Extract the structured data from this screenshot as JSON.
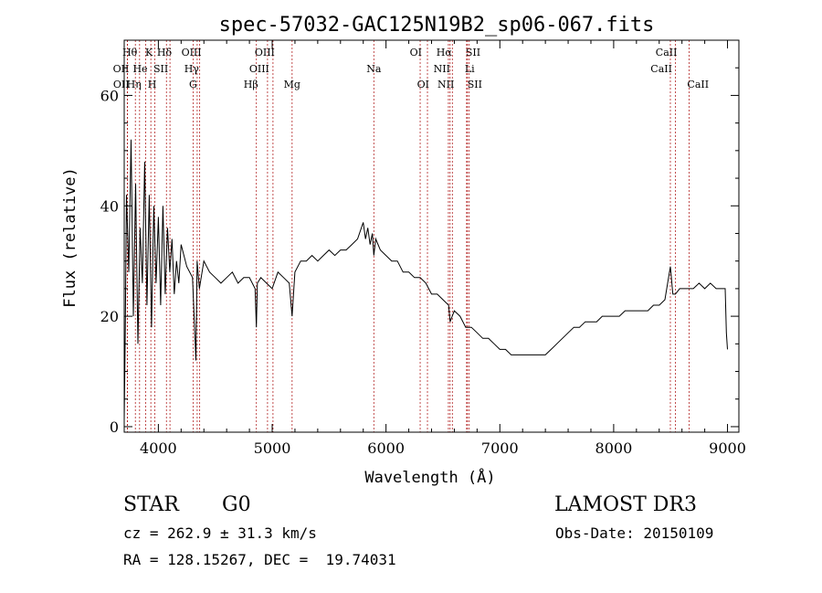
{
  "chart_data": {
    "type": "line",
    "title": "spec-57032-GAC125N19B2_sp06-067.fits",
    "xlabel": "Wavelength (Å)",
    "ylabel": "Flux (relative)",
    "xlim": [
      3700,
      9100
    ],
    "ylim": [
      -1,
      70
    ],
    "x_ticks": [
      4000,
      5000,
      6000,
      7000,
      8000,
      9000
    ],
    "y_ticks": [
      0,
      20,
      40,
      60
    ],
    "series": [
      {
        "name": "flux",
        "x": [
          3700,
          3710,
          3720,
          3740,
          3760,
          3780,
          3800,
          3820,
          3840,
          3860,
          3880,
          3900,
          3920,
          3940,
          3960,
          3980,
          4000,
          4020,
          4040,
          4060,
          4080,
          4100,
          4120,
          4140,
          4160,
          4180,
          4200,
          4250,
          4300,
          4330,
          4340,
          4360,
          4400,
          4450,
          4500,
          4550,
          4600,
          4650,
          4700,
          4750,
          4800,
          4850,
          4861,
          4870,
          4900,
          4950,
          5000,
          5050,
          5100,
          5150,
          5175,
          5200,
          5250,
          5300,
          5350,
          5400,
          5450,
          5500,
          5550,
          5600,
          5650,
          5700,
          5750,
          5800,
          5820,
          5840,
          5860,
          5880,
          5893,
          5910,
          5950,
          6000,
          6050,
          6100,
          6150,
          6200,
          6250,
          6300,
          6350,
          6400,
          6450,
          6500,
          6550,
          6563,
          6600,
          6650,
          6700,
          6750,
          6800,
          6850,
          6900,
          6950,
          7000,
          7050,
          7100,
          7150,
          7200,
          7250,
          7300,
          7350,
          7400,
          7450,
          7500,
          7550,
          7600,
          7650,
          7700,
          7750,
          7800,
          7850,
          7900,
          7950,
          8000,
          8050,
          8100,
          8150,
          8200,
          8250,
          8300,
          8350,
          8400,
          8450,
          8498,
          8520,
          8542,
          8580,
          8620,
          8662,
          8700,
          8750,
          8800,
          8850,
          8900,
          8950,
          8980,
          8990,
          9000
        ],
        "values": [
          1,
          18,
          42,
          28,
          52,
          20,
          44,
          15,
          36,
          26,
          48,
          22,
          42,
          18,
          40,
          26,
          38,
          22,
          40,
          24,
          36,
          28,
          34,
          24,
          30,
          26,
          33,
          29,
          27,
          12,
          30,
          25,
          30,
          28,
          27,
          26,
          27,
          28,
          26,
          27,
          27,
          25,
          18,
          26,
          27,
          26,
          25,
          28,
          27,
          26,
          20,
          28,
          30,
          30,
          31,
          30,
          31,
          32,
          31,
          32,
          32,
          33,
          34,
          37,
          34,
          36,
          33,
          35,
          31,
          34,
          32,
          31,
          30,
          30,
          28,
          28,
          27,
          27,
          26,
          24,
          24,
          23,
          22,
          19,
          21,
          20,
          18,
          18,
          17,
          16,
          16,
          15,
          14,
          14,
          13,
          13,
          13,
          13,
          13,
          13,
          13,
          14,
          15,
          16,
          17,
          18,
          18,
          19,
          19,
          19,
          20,
          20,
          20,
          20,
          21,
          21,
          21,
          21,
          21,
          22,
          22,
          23,
          29,
          24,
          24,
          25,
          25,
          25,
          25,
          26,
          25,
          26,
          25,
          25,
          25,
          17,
          14
        ]
      }
    ],
    "lines": [
      {
        "label": "OII",
        "x": 3727,
        "row": 2,
        "side": "left"
      },
      {
        "label": "OII",
        "x": 3729,
        "row": 3,
        "side": "left"
      },
      {
        "label": "Hθ",
        "x": 3798,
        "row": 1,
        "side": "left"
      },
      {
        "label": "Hη",
        "x": 3835,
        "row": 3,
        "side": "left"
      },
      {
        "label": "He",
        "x": 3889,
        "row": 2,
        "side": "left"
      },
      {
        "label": "K",
        "x": 3934,
        "row": 1,
        "side": "left"
      },
      {
        "label": "H",
        "x": 3968,
        "row": 3,
        "side": "left"
      },
      {
        "label": "SII",
        "x": 4071,
        "row": 2,
        "side": "left"
      },
      {
        "label": "Hδ",
        "x": 4102,
        "row": 1,
        "side": "left"
      },
      {
        "label": "G",
        "x": 4305,
        "row": 3,
        "side": "center"
      },
      {
        "label": "OIII",
        "x": 4363,
        "row": 1,
        "side": "left"
      },
      {
        "label": "Hγ",
        "x": 4341,
        "row": 2,
        "side": "left"
      },
      {
        "label": "Hβ",
        "x": 4861,
        "row": 3,
        "side": "left"
      },
      {
        "label": "OIII",
        "x": 4959,
        "row": 2,
        "side": "left"
      },
      {
        "label": "OIII",
        "x": 5007,
        "row": 1,
        "side": "left"
      },
      {
        "label": "Mg",
        "x": 5175,
        "row": 3,
        "side": "center"
      },
      {
        "label": "Na",
        "x": 5893,
        "row": 2,
        "side": "center"
      },
      {
        "label": "OI",
        "x": 6300,
        "row": 1,
        "side": "left"
      },
      {
        "label": "OI",
        "x": 6364,
        "row": 3,
        "side": "left"
      },
      {
        "label": "NII",
        "x": 6548,
        "row": 2,
        "side": "left"
      },
      {
        "label": "Hα",
        "x": 6563,
        "row": 1,
        "side": "left"
      },
      {
        "label": "NII",
        "x": 6583,
        "row": 3,
        "side": "left"
      },
      {
        "label": "Li",
        "x": 6708,
        "row": 2,
        "side": "right"
      },
      {
        "label": "SII",
        "x": 6716,
        "row": 1,
        "side": "right"
      },
      {
        "label": "SII",
        "x": 6731,
        "row": 3,
        "side": "right"
      },
      {
        "label": "CaII",
        "x": 8498,
        "row": 2,
        "side": "left"
      },
      {
        "label": "CaII",
        "x": 8542,
        "row": 1,
        "side": "left"
      },
      {
        "label": "CaII",
        "x": 8662,
        "row": 3,
        "side": "right"
      }
    ]
  },
  "info": {
    "class": "STAR",
    "subclass": "G0",
    "survey": "LAMOST DR3",
    "cz": "cz = 262.9 ± 31.3 km/s",
    "obs_date": "Obs-Date: 20150109",
    "coords": "RA = 128.15267, DEC =  19.74031"
  }
}
